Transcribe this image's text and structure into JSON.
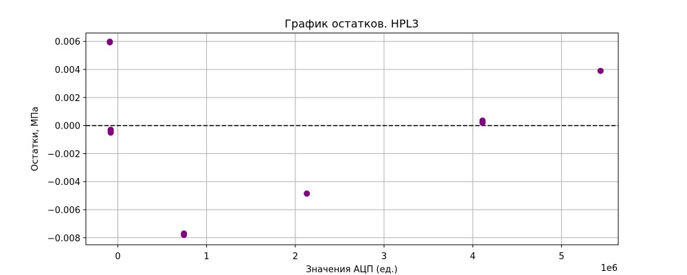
{
  "chart_data": {
    "type": "scatter",
    "title": "График остатков. HPL3",
    "xlabel": "Значения АЦП (ед.)",
    "ylabel": "Остатки, МПа",
    "x_offset_label": "1e6",
    "xlim": [
      -0.36,
      5.64
    ],
    "ylim": [
      -0.0085,
      0.0066
    ],
    "xticks": [
      0,
      1,
      2,
      3,
      4,
      5
    ],
    "xtick_labels": [
      "0",
      "1",
      "2",
      "3",
      "4",
      "5"
    ],
    "yticks": [
      -0.008,
      -0.006,
      -0.004,
      -0.002,
      0.0,
      0.002,
      0.004,
      0.006
    ],
    "ytick_labels": [
      "−0.008",
      "−0.006",
      "−0.004",
      "−0.002",
      "0.000",
      "0.002",
      "0.004",
      "0.006"
    ],
    "grid": true,
    "reference_line": {
      "y": 0.0,
      "style": "dashed",
      "color": "#000000"
    },
    "marker_color": "#800080",
    "points": [
      {
        "x": -0.09,
        "y": 0.00598
      },
      {
        "x": -0.09,
        "y": 0.00594
      },
      {
        "x": -0.08,
        "y": -0.0003
      },
      {
        "x": -0.08,
        "y": -0.0004
      },
      {
        "x": -0.08,
        "y": -0.0005
      },
      {
        "x": 0.745,
        "y": -0.0077
      },
      {
        "x": 0.745,
        "y": -0.0078
      },
      {
        "x": 2.13,
        "y": -0.00485
      },
      {
        "x": 4.11,
        "y": 0.00035
      },
      {
        "x": 4.11,
        "y": 0.0002
      },
      {
        "x": 5.44,
        "y": 0.0039
      }
    ]
  }
}
